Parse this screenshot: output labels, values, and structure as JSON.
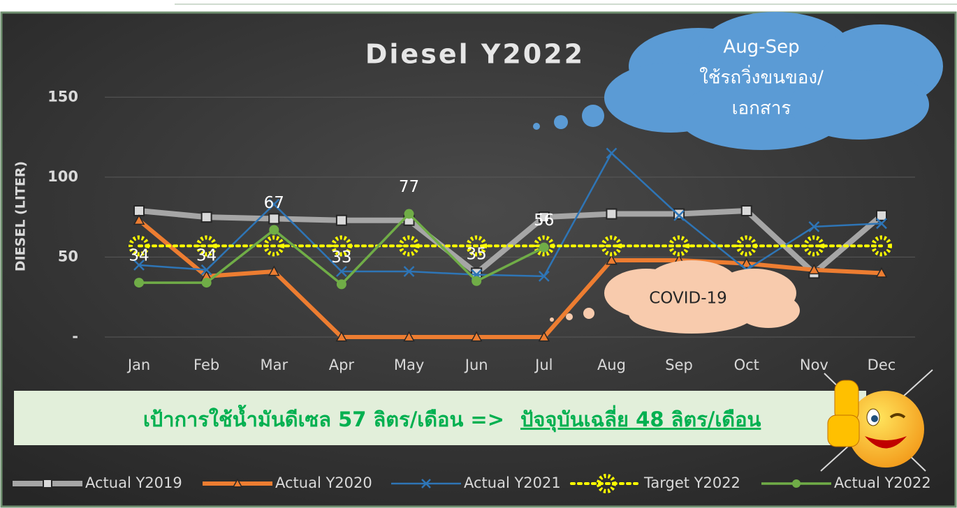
{
  "chart_data": {
    "type": "line",
    "title": "Diesel Y2022",
    "y_label": "DIESEL (LITER)",
    "categories": [
      "Jan",
      "Feb",
      "Mar",
      "Apr",
      "May",
      "Jun",
      "Jul",
      "Aug",
      "Sep",
      "Oct",
      "Nov",
      "Dec"
    ],
    "ylim": [
      0,
      175
    ],
    "yticks": [
      {
        "value": 0,
        "label": "-"
      },
      50,
      100,
      150
    ],
    "grid": true,
    "legend": "bottom",
    "series": [
      {
        "name": "Actual Y2019",
        "color": "#a6a6a6",
        "marker": "square",
        "line_width": 8,
        "values": [
          79,
          75,
          74,
          73,
          73,
          40,
          75,
          77,
          77,
          79,
          40,
          76
        ]
      },
      {
        "name": "Actual Y2020",
        "color": "#ed7d31",
        "marker": "triangle",
        "line_width": 6,
        "values": [
          73,
          38,
          41,
          0,
          0,
          0,
          0,
          48,
          48,
          46,
          42,
          40
        ]
      },
      {
        "name": "Actual Y2021",
        "color": "#2e75b6",
        "marker": "x",
        "line_width": 2.5,
        "values": [
          45,
          42,
          83,
          41,
          41,
          39,
          38,
          115,
          76,
          42,
          69,
          71
        ]
      },
      {
        "name": "Target Y2022",
        "color": "#ffff00",
        "marker": "dots",
        "line_width": 4,
        "dash": "dotted",
        "values": [
          57,
          57,
          57,
          57,
          57,
          57,
          57,
          57,
          57,
          57,
          57,
          57
        ]
      },
      {
        "name": "Actual Y2022",
        "color": "#70ad47",
        "marker": "circle",
        "line_width": 3.5,
        "data_labels": true,
        "values": [
          34,
          34,
          67,
          33,
          77,
          35,
          56,
          null,
          null,
          null,
          null,
          null
        ]
      }
    ],
    "annotations": {
      "cloud_lines": [
        "Aug-Sep",
        "ใช้รถวิ่งขนของ/",
        "เอกสาร"
      ],
      "covid": "COVID-19",
      "target_text": "เป้าการใช้น้ำมันดีเซล 57 ลิตร/เดือน =>",
      "current_text": "ปัจจุบันเฉลี่ย 48 ลิตร/เดือน"
    }
  }
}
